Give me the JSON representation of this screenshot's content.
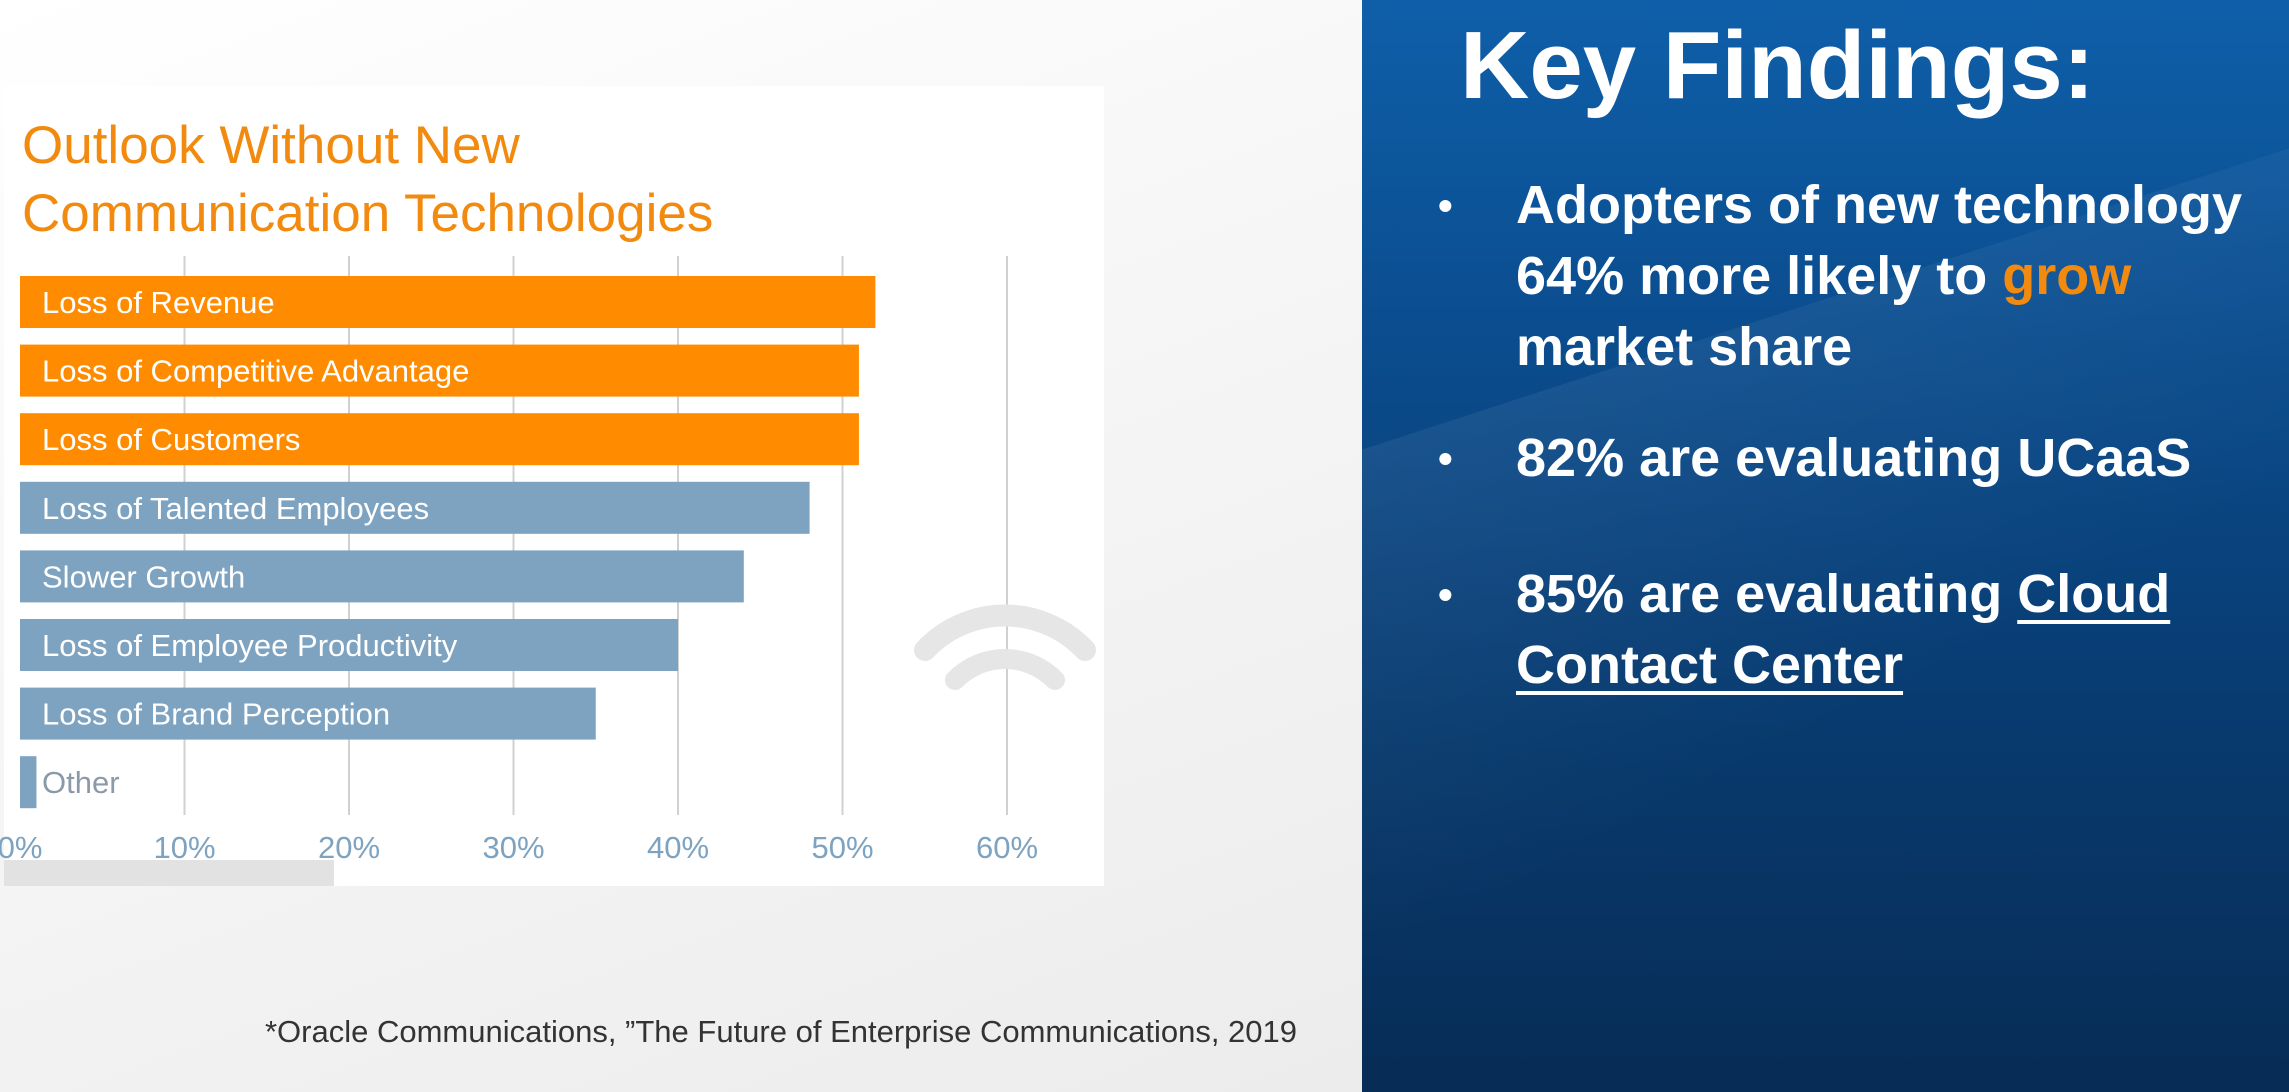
{
  "chart_data": {
    "type": "bar",
    "orientation": "horizontal",
    "title": "Outlook Without New\nCommunication Technologies",
    "categories": [
      "Loss of Revenue",
      "Loss of Competitive Advantage",
      "Loss of Customers",
      "Loss of Talented Employees",
      "Slower Growth",
      "Loss of Employee Productivity",
      "Loss of Brand Perception",
      "Other"
    ],
    "values": [
      52,
      51,
      51,
      48,
      44,
      40,
      35,
      1
    ],
    "highlighted": [
      true,
      true,
      true,
      false,
      false,
      false,
      false,
      false
    ],
    "xlim": [
      0,
      70
    ],
    "xticks": [
      "0%",
      "10%",
      "20%",
      "30%",
      "40%",
      "50%",
      "60%"
    ],
    "grid": true,
    "colors": {
      "highlight": "#ff8c00",
      "normal": "#7da3c0",
      "grid": "#d0d0d0",
      "tick": "#7da3c0",
      "title": "#f28a0f"
    }
  },
  "source_note": "*Oracle Communications, ”The Future of Enterprise Communications, 2019",
  "findings": {
    "heading": "Key Findings:",
    "bullet": "•",
    "items": [
      {
        "before": "Adopters of new technology 64% more likely to ",
        "highlight": "grow",
        "after": " market share"
      },
      {
        "before": "82% are evaluating UCaaS"
      },
      {
        "before": "85% are evaluating ",
        "link": "Cloud Contact Center"
      }
    ],
    "accent_color": "#f28a0f"
  }
}
